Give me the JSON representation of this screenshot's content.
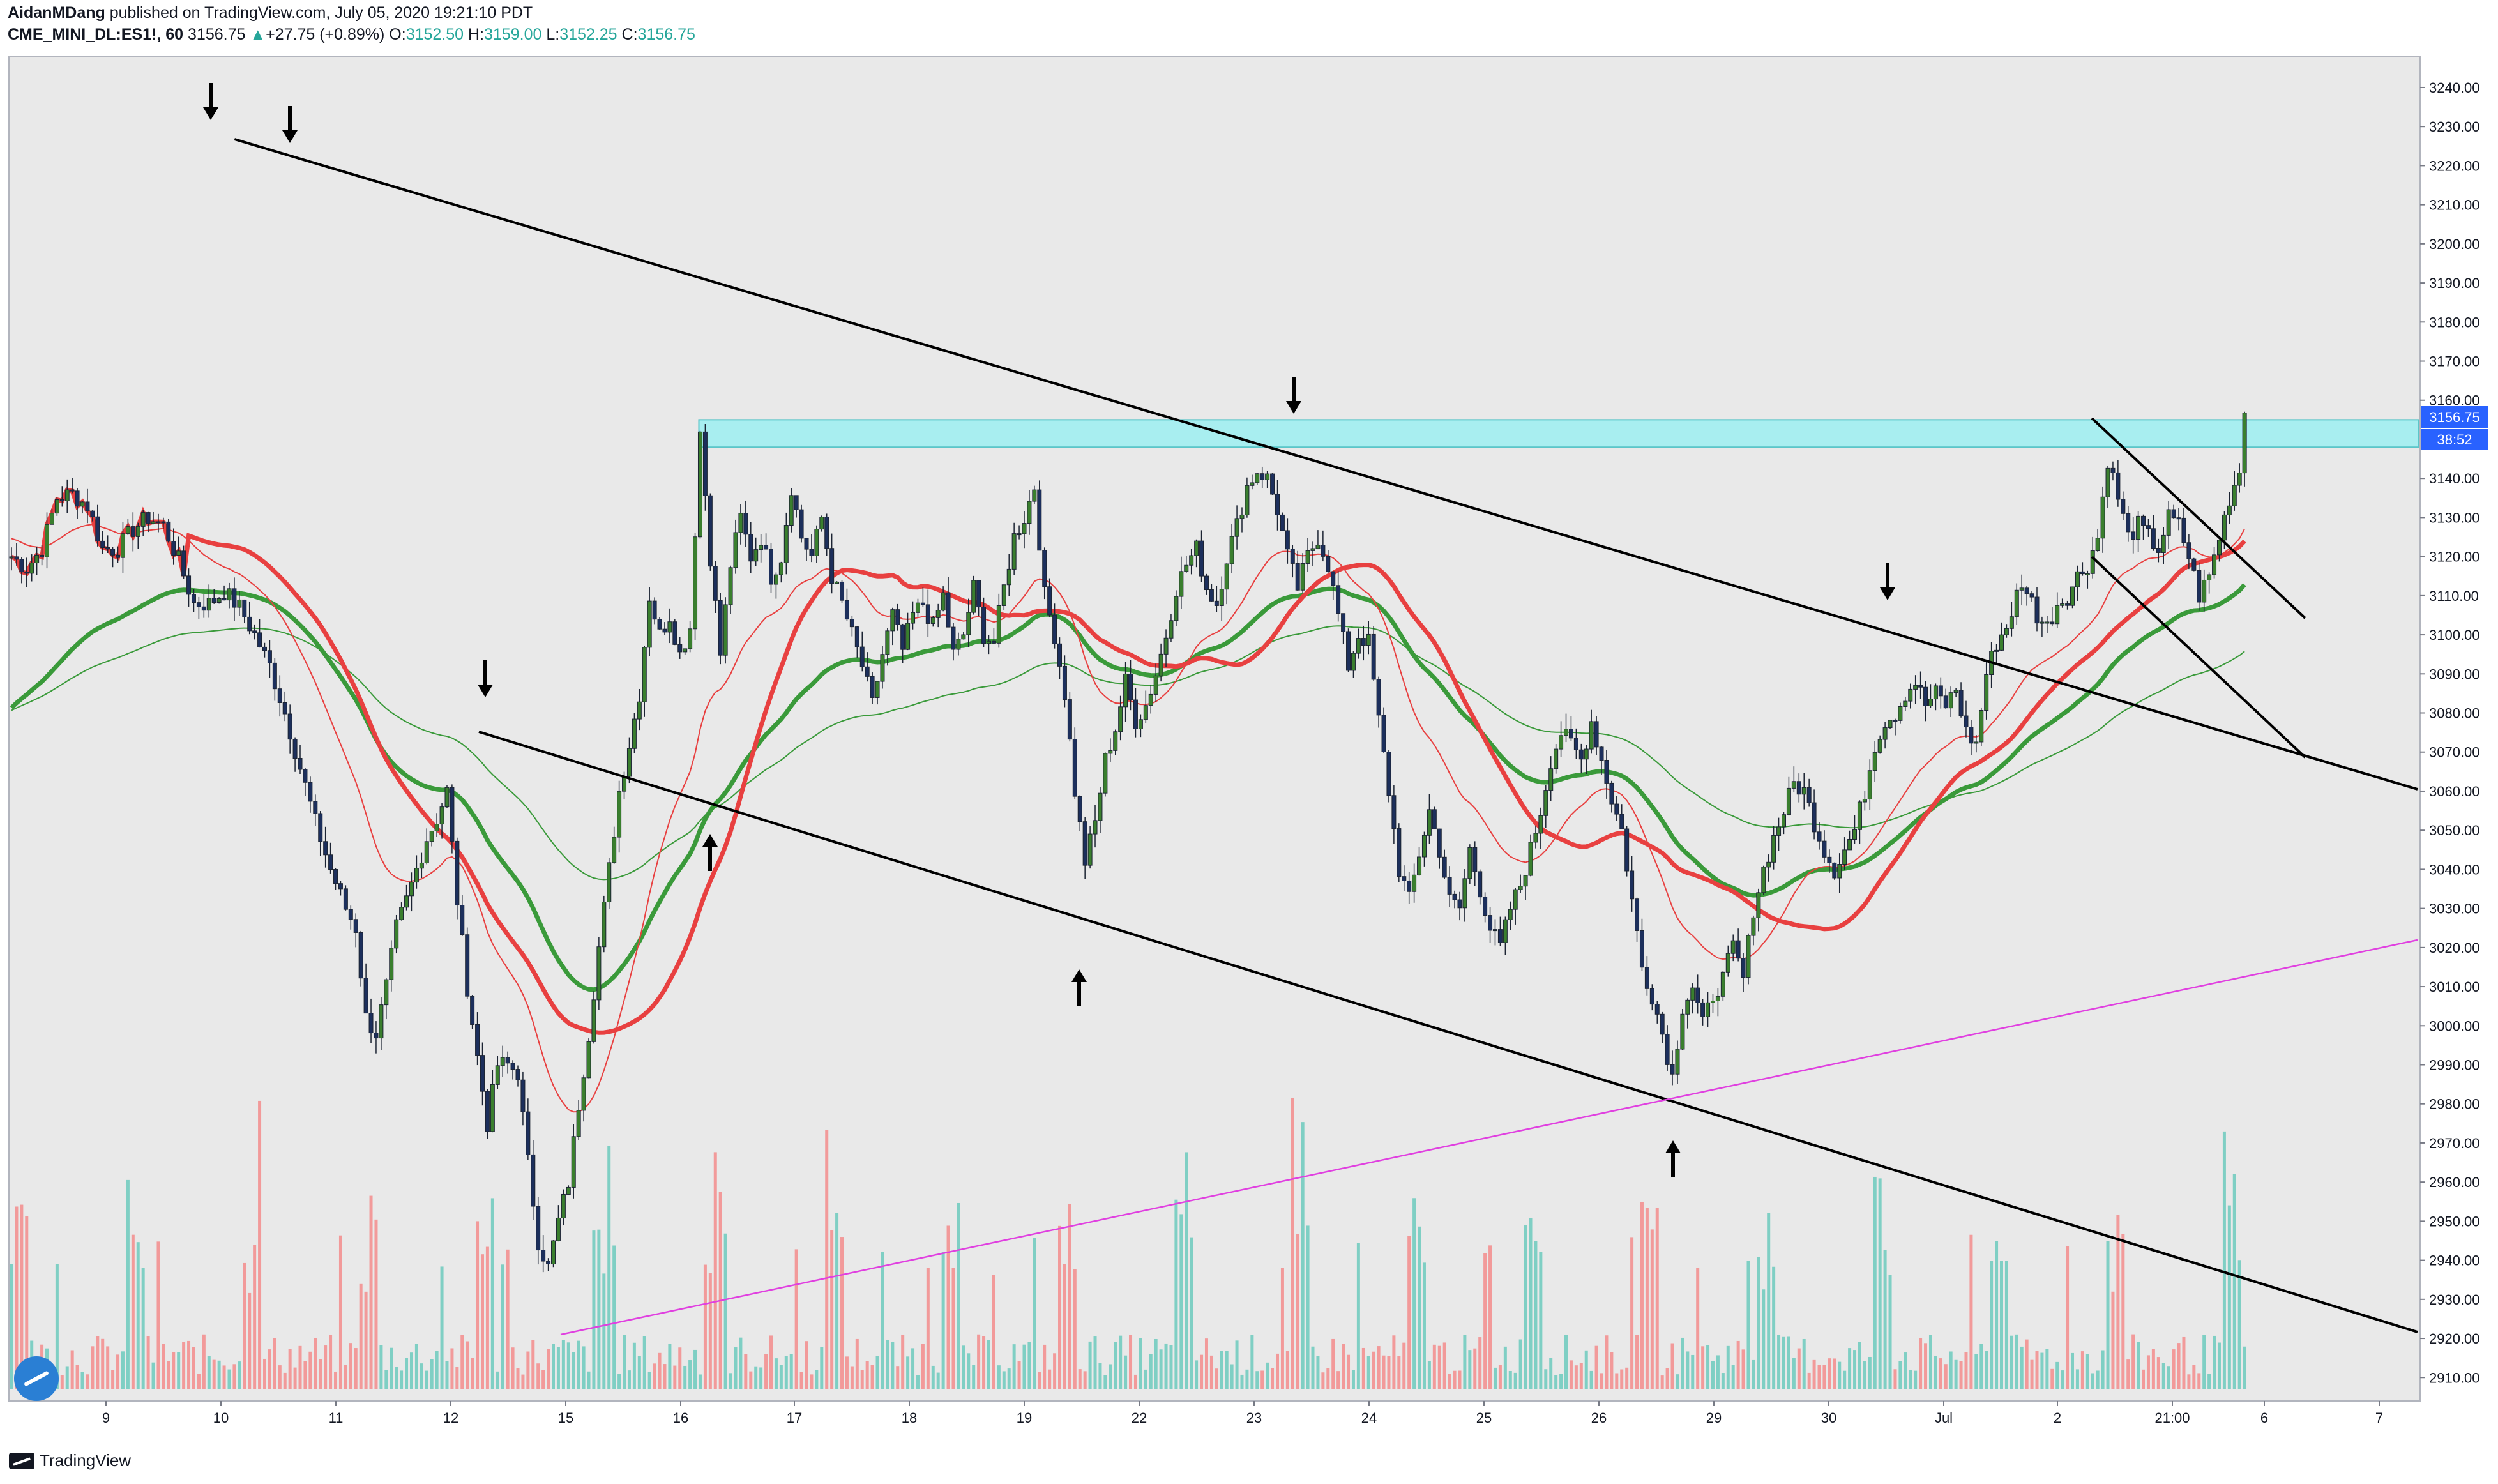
{
  "header": {
    "author": "AidanMDang",
    "published_text": " published on TradingView.com, July 05, 2020 19:21:10 PDT",
    "symbol": "CME_MINI_DL:ES1!, 60",
    "last": "3156.75",
    "change": "+27.75 (+0.89%)",
    "open_label": "O:",
    "open": "3152.50",
    "high_label": "H:",
    "high": "3159.00",
    "low_label": "L:",
    "low": "3152.25",
    "close_label": "C:",
    "close": "3156.75"
  },
  "footer": {
    "brand": "TradingView"
  },
  "price_badges": {
    "last_price": "3156.75",
    "countdown": "38:52"
  },
  "colors": {
    "plot_bg": "#e9e9e9",
    "up_candle": "#3a7f2e",
    "down_candle": "#1c2f5c",
    "ma_red": "#e84040",
    "ma_green": "#3a9a3a",
    "zone": "#a8eef0",
    "magenta": "#e040e0",
    "vol_up": "#7fcfc4",
    "vol_down": "#f29a9a",
    "accent_blue": "#2962ff"
  },
  "chart_data": {
    "type": "candlestick",
    "interval": "60",
    "ylim": [
      2904,
      3248
    ],
    "y_ticks": [
      "3240.00",
      "3230.00",
      "3220.00",
      "3210.00",
      "3200.00",
      "3190.00",
      "3180.00",
      "3170.00",
      "3160.00",
      "3140.00",
      "3130.00",
      "3120.00",
      "3110.00",
      "3100.00",
      "3090.00",
      "3080.00",
      "3070.00",
      "3060.00",
      "3050.00",
      "3040.00",
      "3030.00",
      "3020.00",
      "3010.00",
      "3000.00",
      "2990.00",
      "2980.00",
      "2970.00",
      "2960.00",
      "2950.00",
      "2940.00",
      "2930.00",
      "2920.00",
      "2910.00"
    ],
    "x_labels": [
      "9",
      "10",
      "11",
      "12",
      "15",
      "16",
      "17",
      "18",
      "19",
      "22",
      "23",
      "24",
      "25",
      "26",
      "29",
      "30",
      "Jul",
      "2",
      "21:00",
      "6",
      "7"
    ],
    "price_path": [
      [
        0,
        3120
      ],
      [
        3,
        3117
      ],
      [
        6,
        3122
      ],
      [
        9,
        3135
      ],
      [
        12,
        3136
      ],
      [
        15,
        3133
      ],
      [
        18,
        3122
      ],
      [
        21,
        3122
      ],
      [
        24,
        3127
      ],
      [
        27,
        3130
      ],
      [
        30,
        3128
      ],
      [
        33,
        3119
      ],
      [
        36,
        3108
      ],
      [
        39,
        3108
      ],
      [
        42,
        3111
      ],
      [
        45,
        3107
      ],
      [
        48,
        3100
      ],
      [
        51,
        3092
      ],
      [
        54,
        3080
      ],
      [
        57,
        3066
      ],
      [
        60,
        3052
      ],
      [
        63,
        3040
      ],
      [
        66,
        3030
      ],
      [
        68,
        3025
      ],
      [
        70,
        3002
      ],
      [
        72,
        2998
      ],
      [
        74,
        3010
      ],
      [
        76,
        3025
      ],
      [
        78,
        3032
      ],
      [
        80,
        3040
      ],
      [
        82,
        3048
      ],
      [
        84,
        3053
      ],
      [
        86,
        3060
      ],
      [
        88,
        3032
      ],
      [
        90,
        3010
      ],
      [
        92,
        2992
      ],
      [
        94,
        2975
      ],
      [
        96,
        2990
      ],
      [
        98,
        2990
      ],
      [
        100,
        2988
      ],
      [
        102,
        2965
      ],
      [
        104,
        2945
      ],
      [
        106,
        2938
      ],
      [
        108,
        2950
      ],
      [
        110,
        2960
      ],
      [
        112,
        2980
      ],
      [
        114,
        2998
      ],
      [
        116,
        3020
      ],
      [
        118,
        3040
      ],
      [
        120,
        3060
      ],
      [
        122,
        3072
      ],
      [
        124,
        3085
      ],
      [
        126,
        3110
      ],
      [
        128,
        3100
      ],
      [
        130,
        3105
      ],
      [
        132,
        3095
      ],
      [
        134,
        3102
      ],
      [
        136,
        3152
      ],
      [
        138,
        3120
      ],
      [
        140,
        3095
      ],
      [
        142,
        3118
      ],
      [
        144,
        3130
      ],
      [
        146,
        3120
      ],
      [
        148,
        3125
      ],
      [
        150,
        3115
      ],
      [
        152,
        3120
      ],
      [
        154,
        3138
      ],
      [
        156,
        3125
      ],
      [
        158,
        3120
      ],
      [
        160,
        3130
      ],
      [
        162,
        3115
      ],
      [
        164,
        3108
      ],
      [
        166,
        3100
      ],
      [
        168,
        3092
      ],
      [
        170,
        3082
      ],
      [
        172,
        3095
      ],
      [
        174,
        3105
      ],
      [
        176,
        3096
      ],
      [
        178,
        3105
      ],
      [
        180,
        3108
      ],
      [
        182,
        3102
      ],
      [
        184,
        3110
      ],
      [
        186,
        3095
      ],
      [
        188,
        3100
      ],
      [
        190,
        3112
      ],
      [
        192,
        3100
      ],
      [
        194,
        3098
      ],
      [
        196,
        3112
      ],
      [
        198,
        3125
      ],
      [
        200,
        3130
      ],
      [
        202,
        3138
      ],
      [
        204,
        3110
      ],
      [
        206,
        3100
      ],
      [
        208,
        3085
      ],
      [
        210,
        3060
      ],
      [
        212,
        3042
      ],
      [
        214,
        3052
      ],
      [
        216,
        3068
      ],
      [
        218,
        3076
      ],
      [
        220,
        3088
      ],
      [
        222,
        3078
      ],
      [
        224,
        3082
      ],
      [
        226,
        3090
      ],
      [
        228,
        3100
      ],
      [
        230,
        3112
      ],
      [
        232,
        3118
      ],
      [
        234,
        3122
      ],
      [
        236,
        3112
      ],
      [
        238,
        3108
      ],
      [
        240,
        3120
      ],
      [
        242,
        3128
      ],
      [
        244,
        3138
      ],
      [
        246,
        3142
      ],
      [
        248,
        3140
      ],
      [
        250,
        3132
      ],
      [
        252,
        3120
      ],
      [
        254,
        3112
      ],
      [
        256,
        3120
      ],
      [
        258,
        3125
      ],
      [
        260,
        3118
      ],
      [
        262,
        3105
      ],
      [
        264,
        3092
      ],
      [
        266,
        3100
      ],
      [
        268,
        3098
      ],
      [
        270,
        3078
      ],
      [
        272,
        3060
      ],
      [
        274,
        3040
      ],
      [
        276,
        3032
      ],
      [
        278,
        3044
      ],
      [
        280,
        3055
      ],
      [
        282,
        3045
      ],
      [
        284,
        3032
      ],
      [
        286,
        3030
      ],
      [
        288,
        3045
      ],
      [
        290,
        3035
      ],
      [
        292,
        3025
      ],
      [
        294,
        3020
      ],
      [
        296,
        3030
      ],
      [
        298,
        3036
      ],
      [
        300,
        3045
      ],
      [
        302,
        3055
      ],
      [
        304,
        3068
      ],
      [
        306,
        3075
      ],
      [
        308,
        3072
      ],
      [
        310,
        3068
      ],
      [
        312,
        3078
      ],
      [
        314,
        3068
      ],
      [
        316,
        3058
      ],
      [
        318,
        3050
      ],
      [
        320,
        3032
      ],
      [
        322,
        3015
      ],
      [
        324,
        3008
      ],
      [
        326,
        2998
      ],
      [
        328,
        2987
      ],
      [
        330,
        3005
      ],
      [
        332,
        3010
      ],
      [
        334,
        3000
      ],
      [
        336,
        3008
      ],
      [
        338,
        3012
      ],
      [
        340,
        3020
      ],
      [
        342,
        3012
      ],
      [
        344,
        3030
      ],
      [
        346,
        3040
      ],
      [
        348,
        3048
      ],
      [
        350,
        3055
      ],
      [
        352,
        3062
      ],
      [
        354,
        3060
      ],
      [
        356,
        3052
      ],
      [
        358,
        3045
      ],
      [
        360,
        3040
      ],
      [
        362,
        3045
      ],
      [
        364,
        3050
      ],
      [
        366,
        3060
      ],
      [
        368,
        3072
      ],
      [
        370,
        3078
      ],
      [
        372,
        3080
      ],
      [
        374,
        3085
      ],
      [
        376,
        3088
      ],
      [
        378,
        3082
      ],
      [
        380,
        3085
      ],
      [
        382,
        3082
      ],
      [
        384,
        3086
      ],
      [
        386,
        3075
      ],
      [
        388,
        3072
      ],
      [
        390,
        3090
      ],
      [
        392,
        3098
      ],
      [
        394,
        3102
      ],
      [
        396,
        3110
      ],
      [
        398,
        3112
      ],
      [
        400,
        3105
      ],
      [
        402,
        3102
      ],
      [
        404,
        3108
      ],
      [
        406,
        3110
      ],
      [
        408,
        3115
      ],
      [
        410,
        3118
      ],
      [
        412,
        3125
      ],
      [
        414,
        3145
      ],
      [
        416,
        3135
      ],
      [
        418,
        3125
      ],
      [
        420,
        3128
      ],
      [
        422,
        3125
      ],
      [
        424,
        3122
      ],
      [
        426,
        3130
      ],
      [
        428,
        3128
      ],
      [
        430,
        3120
      ],
      [
        432,
        3110
      ],
      [
        434,
        3115
      ],
      [
        436,
        3125
      ],
      [
        438,
        3135
      ],
      [
        440,
        3142
      ],
      [
        441,
        3156.75
      ]
    ],
    "volume_profile": "hourly volume bars, heavier at session opens",
    "drawings": {
      "zone": {
        "top": 3155,
        "bottom": 3148
      },
      "channel_upper": [
        [
          10,
          3229
        ],
        [
          52,
          3049
        ],
        [
          100,
          2868
        ]
      ],
      "channel_lower": [
        [
          88,
          3077
        ],
        [
          306,
          2984
        ]
      ],
      "magenta_line": [
        [
          102,
          2924
        ],
        [
          470,
          3024
        ]
      ],
      "inner_upper": [
        [
          384,
          3155
        ],
        [
          428,
          3113
        ]
      ],
      "inner_lower": [
        [
          384,
          3122
        ],
        [
          428,
          3071
        ]
      ]
    }
  }
}
